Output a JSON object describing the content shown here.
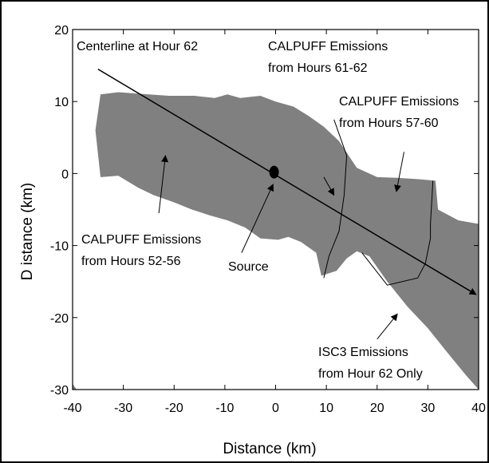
{
  "chart_data": {
    "type": "area",
    "title": "",
    "xlabel": "Distance (km)",
    "ylabel": "D istance (km)",
    "xlim": [
      -40,
      40
    ],
    "ylim": [
      -30,
      20
    ],
    "xticks": [
      -40,
      -30,
      -20,
      -10,
      0,
      10,
      20,
      30,
      40
    ],
    "yticks": [
      -30,
      -20,
      -10,
      0,
      10,
      20
    ],
    "grid": false,
    "colors": {
      "plume": "#808080",
      "outline": "#000000",
      "background": "#ffffff"
    },
    "plume_boundary": [
      [
        -34.5,
        11.0
      ],
      [
        -31.0,
        11.3
      ],
      [
        -25.0,
        11.0
      ],
      [
        -21.0,
        10.8
      ],
      [
        -16.0,
        10.8
      ],
      [
        -12.0,
        10.5
      ],
      [
        -9.5,
        11.0
      ],
      [
        -7.0,
        10.5
      ],
      [
        -3.0,
        10.8
      ],
      [
        0.0,
        10.0
      ],
      [
        3.5,
        9.3
      ],
      [
        6.5,
        8.0
      ],
      [
        9.5,
        6.5
      ],
      [
        12.5,
        4.5
      ],
      [
        16.0,
        0.8
      ],
      [
        20.0,
        -0.5
      ],
      [
        24.0,
        -0.6
      ],
      [
        28.5,
        -0.8
      ],
      [
        31.5,
        -1.0
      ],
      [
        32.0,
        -5.0
      ],
      [
        36.0,
        -6.5
      ],
      [
        40.0,
        -7.0
      ],
      [
        40.0,
        -30.0
      ],
      [
        37.5,
        -28.0
      ],
      [
        34.0,
        -25.0
      ],
      [
        30.0,
        -21.5
      ],
      [
        26.0,
        -18.5
      ],
      [
        22.0,
        -15.0
      ],
      [
        18.5,
        -11.5
      ],
      [
        16.0,
        -10.8
      ],
      [
        14.0,
        -11.8
      ],
      [
        12.0,
        -13.5
      ],
      [
        9.0,
        -14.2
      ],
      [
        8.0,
        -11.0
      ],
      [
        5.0,
        -9.5
      ],
      [
        2.5,
        -8.8
      ],
      [
        0.5,
        -9.2
      ],
      [
        -3.0,
        -9.0
      ],
      [
        -6.0,
        -7.5
      ],
      [
        -9.5,
        -6.5
      ],
      [
        -13.0,
        -5.8
      ],
      [
        -16.5,
        -5.0
      ],
      [
        -20.0,
        -4.0
      ],
      [
        -24.0,
        -3.0
      ],
      [
        -27.0,
        -2.0
      ],
      [
        -31.0,
        -0.3
      ],
      [
        -34.5,
        -0.5
      ],
      [
        -35.5,
        6.0
      ]
    ],
    "period_boundaries": [
      [
        [
          11.5,
          7.5
        ],
        [
          14.0,
          2.5
        ],
        [
          13.5,
          -3.0
        ],
        [
          12.5,
          -8.0
        ],
        [
          10.5,
          -11.5
        ],
        [
          9.5,
          -14.5
        ]
      ],
      [
        [
          31.0,
          -1.0
        ],
        [
          30.5,
          -7.0
        ],
        [
          30.5,
          -9.0
        ],
        [
          29.5,
          -12.5
        ],
        [
          28.0,
          -14.5
        ],
        [
          22.0,
          -15.5
        ],
        [
          17.0,
          -11.0
        ]
      ]
    ],
    "centerline": {
      "label": "Centerline at Hour 62",
      "from": [
        -35.0,
        14.5
      ],
      "to": [
        39.5,
        -16.8
      ]
    },
    "source": {
      "label": "Source",
      "x": -0.3,
      "y": 0.2
    },
    "annotations": [
      {
        "lines": [
          "Centerline at Hour 62"
        ]
      },
      {
        "lines": [
          "CALPUFF Emissions",
          "from Hours 61-62"
        ],
        "arrow_from": [
          9.5,
          -0.5
        ],
        "arrow_to": [
          11.5,
          -3.0
        ]
      },
      {
        "lines": [
          "CALPUFF Emissions",
          "from Hours 57-60"
        ],
        "arrow_from": [
          25.3,
          3.0
        ],
        "arrow_to": [
          23.8,
          -2.5
        ]
      },
      {
        "lines": [
          "CALPUFF Emissions",
          "from Hours 52-56"
        ],
        "arrow_from": [
          -23.0,
          -5.5
        ],
        "arrow_to": [
          -21.7,
          2.5
        ]
      },
      {
        "lines": [
          "Source"
        ],
        "arrow_from": [
          -6.7,
          -11.0
        ],
        "arrow_to": [
          -0.5,
          -1.5
        ]
      },
      {
        "lines": [
          "ISC3 Emissions",
          "from Hour 62 Only"
        ],
        "arrow_from": [
          20.0,
          -23.0
        ],
        "arrow_to": [
          24.0,
          -19.5
        ]
      }
    ]
  }
}
